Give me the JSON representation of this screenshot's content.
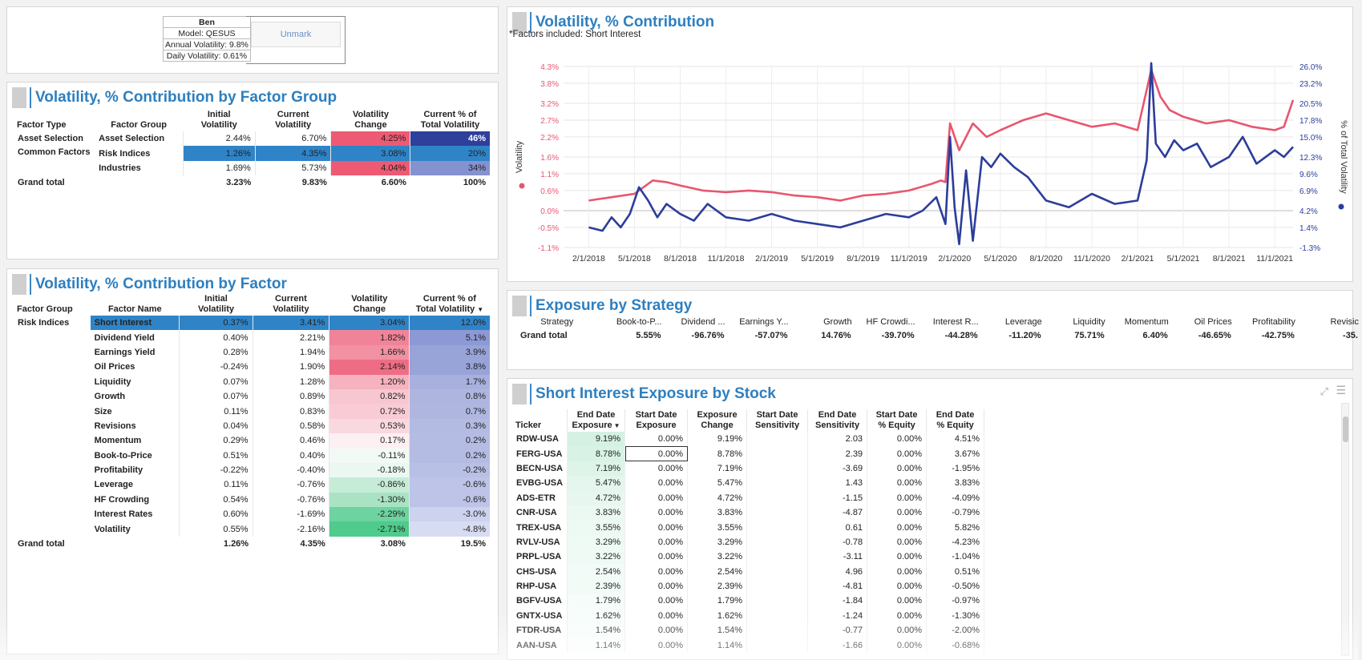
{
  "info": {
    "user": "Ben",
    "model": "Model: QESUS",
    "annual": "Annual Volatility: 9.8%",
    "daily": "Daily Volatility: 0.61%",
    "unmark_label": "Unmark"
  },
  "group_panel": {
    "title": "Volatility, % Contribution by Factor Group",
    "headers": [
      "Factor Type",
      "Factor Group",
      "Initial\nVolatility",
      "Current\nVolatility",
      "Volatility\nChange",
      "Current % of\nTotal Volatility"
    ],
    "rows": [
      {
        "type": "Asset Selection",
        "group": "Asset Selection",
        "initial": "2.44%",
        "current": "6.70%",
        "change": "4.25%",
        "pct": "46%",
        "change_color": "#ee5a73",
        "pct_color": "#2e3f9c",
        "pct_text": "#ffffff",
        "initial_bg": "",
        "current_bg": "",
        "change_text": "#222"
      },
      {
        "type": "Common Factors",
        "group": "Risk Indices",
        "initial": "1.26%",
        "current": "4.35%",
        "change": "3.08%",
        "pct": "20%",
        "change_color": "#2f84c8",
        "pct_color": "#2f84c8",
        "pct_text": "#222",
        "initial_bg": "#2f84c8",
        "current_bg": "#2f84c8",
        "change_text": "#222"
      },
      {
        "type": "",
        "group": "Industries",
        "initial": "1.69%",
        "current": "5.73%",
        "change": "4.04%",
        "pct": "34%",
        "change_color": "#ee5a73",
        "pct_color": "#8692cf",
        "pct_text": "#222",
        "initial_bg": "",
        "current_bg": "",
        "change_text": "#222"
      }
    ],
    "total": {
      "label": "Grand total",
      "initial": "3.23%",
      "current": "9.83%",
      "change": "6.60%",
      "pct": "100%"
    }
  },
  "factor_panel": {
    "title": "Volatility, % Contribution by Factor",
    "headers": [
      "Factor Group",
      "Factor Name",
      "Initial\nVolatility",
      "Current\nVolatility",
      "Volatility\nChange",
      "Current % of\nTotal Volatility"
    ],
    "sort_icon": "sort-desc-icon",
    "group_label": "Risk Indices",
    "rows": [
      {
        "name": "Short Interest",
        "initial": "0.37%",
        "current": "3.41%",
        "change": "3.04%",
        "pct": "12.0%",
        "change_color": "#2f84c8",
        "pct_color": "#2f84c8",
        "highlight": true
      },
      {
        "name": "Dividend Yield",
        "initial": "0.40%",
        "current": "2.21%",
        "change": "1.82%",
        "pct": "5.1%",
        "change_color": "#f18398",
        "pct_color": "#8d99d4"
      },
      {
        "name": "Earnings Yield",
        "initial": "0.28%",
        "current": "1.94%",
        "change": "1.66%",
        "pct": "3.9%",
        "change_color": "#f291a3",
        "pct_color": "#98a3d8"
      },
      {
        "name": "Oil Prices",
        "initial": "-0.24%",
        "current": "1.90%",
        "change": "2.14%",
        "pct": "3.8%",
        "change_color": "#ee6d85",
        "pct_color": "#98a3d8"
      },
      {
        "name": "Liquidity",
        "initial": "0.07%",
        "current": "1.28%",
        "change": "1.20%",
        "pct": "1.7%",
        "change_color": "#f6b2bf",
        "pct_color": "#a8b1de"
      },
      {
        "name": "Growth",
        "initial": "0.07%",
        "current": "0.89%",
        "change": "0.82%",
        "pct": "0.8%",
        "change_color": "#f8c6d0",
        "pct_color": "#aeb6e0"
      },
      {
        "name": "Size",
        "initial": "0.11%",
        "current": "0.83%",
        "change": "0.72%",
        "pct": "0.7%",
        "change_color": "#f9ccd5",
        "pct_color": "#afb7e1"
      },
      {
        "name": "Revisions",
        "initial": "0.04%",
        "current": "0.58%",
        "change": "0.53%",
        "pct": "0.3%",
        "change_color": "#fad8df",
        "pct_color": "#b3bbe2"
      },
      {
        "name": "Momentum",
        "initial": "0.29%",
        "current": "0.46%",
        "change": "0.17%",
        "pct": "0.2%",
        "change_color": "#fdf0f2",
        "pct_color": "#b4bce3"
      },
      {
        "name": "Book-to-Price",
        "initial": "0.51%",
        "current": "0.40%",
        "change": "-0.11%",
        "pct": "0.2%",
        "change_color": "#f1faf5",
        "pct_color": "#b4bce3"
      },
      {
        "name": "Profitability",
        "initial": "-0.22%",
        "current": "-0.40%",
        "change": "-0.18%",
        "pct": "-0.2%",
        "change_color": "#ebf8f1",
        "pct_color": "#b8c0e5"
      },
      {
        "name": "Leverage",
        "initial": "0.11%",
        "current": "-0.76%",
        "change": "-0.86%",
        "pct": "-0.6%",
        "change_color": "#c6ecd8",
        "pct_color": "#bdc4e7"
      },
      {
        "name": "HF Crowding",
        "initial": "0.54%",
        "current": "-0.76%",
        "change": "-1.30%",
        "pct": "-0.6%",
        "change_color": "#a9e3c4",
        "pct_color": "#bdc4e7"
      },
      {
        "name": "Interest Rates",
        "initial": "0.60%",
        "current": "-1.69%",
        "change": "-2.29%",
        "pct": "-3.0%",
        "change_color": "#6dd3a0",
        "pct_color": "#cdd2ee"
      },
      {
        "name": "Volatility",
        "initial": "0.55%",
        "current": "-2.16%",
        "change": "-2.71%",
        "pct": "-4.8%",
        "change_color": "#4fcb8c",
        "pct_color": "#d8dcf2"
      }
    ],
    "total": {
      "label": "Grand total",
      "initial": "1.26%",
      "current": "4.35%",
      "change": "3.08%",
      "pct": "19.5%"
    }
  },
  "chart_panel": {
    "title": "Volatility, % Contribution",
    "subtitle": "*Factors included: Short Interest"
  },
  "chart_data": {
    "type": "line",
    "ylabel": "Volatility",
    "y2label": "% of Total Volatility",
    "y_ticks": [
      "4.3%",
      "3.8%",
      "3.2%",
      "2.7%",
      "2.2%",
      "1.6%",
      "1.1%",
      "0.6%",
      "0.0%",
      "-0.5%",
      "-1.1%"
    ],
    "y_values": [
      4.3,
      3.8,
      3.2,
      2.7,
      2.2,
      1.6,
      1.1,
      0.6,
      0.0,
      -0.5,
      -1.1
    ],
    "y2_ticks": [
      "26.0%",
      "23.2%",
      "20.5%",
      "17.8%",
      "15.0%",
      "12.3%",
      "9.6%",
      "6.9%",
      "4.2%",
      "1.4%",
      "-1.3%"
    ],
    "x_ticks": [
      "2/1/2018",
      "5/1/2018",
      "8/1/2018",
      "11/1/2018",
      "2/1/2019",
      "5/1/2019",
      "8/1/2019",
      "11/1/2019",
      "2/1/2020",
      "5/1/2020",
      "8/1/2020",
      "11/1/2020",
      "2/1/2021",
      "5/1/2021",
      "8/1/2021",
      "11/1/2021"
    ],
    "grid": true,
    "series": [
      {
        "color": "#e8566f",
        "axis": "left",
        "x": [
          0.0,
          0.5,
          1.0,
          1.4,
          1.7,
          2.0,
          2.5,
          3.0,
          3.5,
          4.0,
          4.5,
          5.0,
          5.5,
          6.0,
          6.5,
          7.0,
          7.5,
          7.7,
          7.8,
          7.9,
          8.1,
          8.4,
          8.7,
          9.0,
          9.5,
          10.0,
          10.5,
          11.0,
          11.5,
          12.0,
          12.3,
          12.5,
          12.7,
          13.0,
          13.5,
          14.0,
          14.5,
          15.0,
          15.2,
          15.4
        ],
        "y": [
          0.3,
          0.4,
          0.5,
          0.9,
          0.85,
          0.75,
          0.6,
          0.55,
          0.6,
          0.55,
          0.45,
          0.4,
          0.3,
          0.45,
          0.5,
          0.6,
          0.8,
          0.9,
          0.85,
          2.6,
          1.8,
          2.6,
          2.2,
          2.4,
          2.7,
          2.9,
          2.7,
          2.5,
          2.6,
          2.4,
          4.2,
          3.4,
          3.0,
          2.8,
          2.6,
          2.7,
          2.5,
          2.4,
          2.5,
          3.3
        ]
      },
      {
        "color": "#2c3d9a",
        "axis": "left",
        "x": [
          0.0,
          0.3,
          0.5,
          0.7,
          0.9,
          1.1,
          1.3,
          1.5,
          1.7,
          2.0,
          2.3,
          2.6,
          3.0,
          3.5,
          4.0,
          4.5,
          5.0,
          5.5,
          6.0,
          6.5,
          7.0,
          7.3,
          7.6,
          7.8,
          7.9,
          8.0,
          8.1,
          8.25,
          8.4,
          8.6,
          8.8,
          9.0,
          9.3,
          9.6,
          10.0,
          10.5,
          11.0,
          11.5,
          12.0,
          12.2,
          12.3,
          12.4,
          12.6,
          12.8,
          13.0,
          13.3,
          13.6,
          14.0,
          14.3,
          14.6,
          15.0,
          15.2,
          15.4
        ],
        "y": [
          -0.5,
          -0.6,
          -0.2,
          -0.5,
          -0.1,
          0.7,
          0.3,
          -0.2,
          0.2,
          -0.1,
          -0.3,
          0.2,
          -0.2,
          -0.3,
          -0.1,
          -0.3,
          -0.4,
          -0.5,
          -0.3,
          -0.1,
          -0.2,
          0.0,
          0.4,
          -0.4,
          2.2,
          0.1,
          -1.0,
          1.2,
          -0.9,
          1.6,
          1.3,
          1.7,
          1.3,
          1.0,
          0.3,
          0.1,
          0.5,
          0.2,
          0.3,
          1.5,
          4.4,
          2.0,
          1.6,
          2.1,
          1.8,
          2.0,
          1.3,
          1.6,
          2.2,
          1.4,
          1.8,
          1.6,
          1.9
        ]
      }
    ]
  },
  "strategy_panel": {
    "title": "Exposure by Strategy",
    "headers": [
      "Strategy",
      "Book-to-P...",
      "Dividend ...",
      "Earnings Y...",
      "Growth",
      "HF Crowdi...",
      "Interest R...",
      "Leverage",
      "Liquidity",
      "Momentum",
      "Oil Prices",
      "Profitability",
      "Revisic"
    ],
    "row": [
      "Grand total",
      "5.55%",
      "-96.76%",
      "-57.07%",
      "14.76%",
      "-39.70%",
      "-44.28%",
      "-11.20%",
      "75.71%",
      "6.40%",
      "-46.65%",
      "-42.75%",
      "-35."
    ]
  },
  "stock_panel": {
    "title": "Short Interest Exposure by Stock",
    "headers": [
      "Ticker",
      "End Date\nExposure",
      "Start Date\nExposure",
      "Exposure\nChange",
      "Start Date\nSensitivity",
      "End Date\nSensitivity",
      "Start Date\n% Equity",
      "End Date\n% Equity"
    ],
    "expand_icon": "expand-icon",
    "list_icon": "list-icon",
    "rows": [
      [
        "RDW-USA",
        "9.19%",
        "0.00%",
        "9.19%",
        "",
        "2.03",
        "0.00%",
        "4.51%"
      ],
      [
        "FERG-USA",
        "8.78%",
        "0.00%",
        "8.78%",
        "",
        "2.39",
        "0.00%",
        "3.67%"
      ],
      [
        "BECN-USA",
        "7.19%",
        "0.00%",
        "7.19%",
        "",
        "-3.69",
        "0.00%",
        "-1.95%"
      ],
      [
        "EVBG-USA",
        "5.47%",
        "0.00%",
        "5.47%",
        "",
        "1.43",
        "0.00%",
        "3.83%"
      ],
      [
        "ADS-ETR",
        "4.72%",
        "0.00%",
        "4.72%",
        "",
        "-1.15",
        "0.00%",
        "-4.09%"
      ],
      [
        "CNR-USA",
        "3.83%",
        "0.00%",
        "3.83%",
        "",
        "-4.87",
        "0.00%",
        "-0.79%"
      ],
      [
        "TREX-USA",
        "3.55%",
        "0.00%",
        "3.55%",
        "",
        "0.61",
        "0.00%",
        "5.82%"
      ],
      [
        "RVLV-USA",
        "3.29%",
        "0.00%",
        "3.29%",
        "",
        "-0.78",
        "0.00%",
        "-4.23%"
      ],
      [
        "PRPL-USA",
        "3.22%",
        "0.00%",
        "3.22%",
        "",
        "-3.11",
        "0.00%",
        "-1.04%"
      ],
      [
        "CHS-USA",
        "2.54%",
        "0.00%",
        "2.54%",
        "",
        "4.96",
        "0.00%",
        "0.51%"
      ],
      [
        "RHP-USA",
        "2.39%",
        "0.00%",
        "2.39%",
        "",
        "-4.81",
        "0.00%",
        "-0.50%"
      ],
      [
        "BGFV-USA",
        "1.79%",
        "0.00%",
        "1.79%",
        "",
        "-1.84",
        "0.00%",
        "-0.97%"
      ],
      [
        "GNTX-USA",
        "1.62%",
        "0.00%",
        "1.62%",
        "",
        "-1.24",
        "0.00%",
        "-1.30%"
      ],
      [
        "FTDR-USA",
        "1.54%",
        "0.00%",
        "1.54%",
        "",
        "-0.77",
        "0.00%",
        "-2.00%"
      ],
      [
        "AAN-USA",
        "1.14%",
        "0.00%",
        "1.14%",
        "",
        "-1.66",
        "0.00%",
        "-0.68%"
      ]
    ],
    "exposure_colors": [
      "#d5f1e3",
      "#d9f2e6",
      "#def4e9",
      "#e4f6ed",
      "#e7f7ef",
      "#ebf9f2",
      "#edf9f3",
      "#eefaf4",
      "#effaf5",
      "#f2fbf7",
      "#f3fbf7",
      "#f6fcf9",
      "#f7fdfa",
      "#f8fdfa",
      "#fafefc"
    ]
  }
}
